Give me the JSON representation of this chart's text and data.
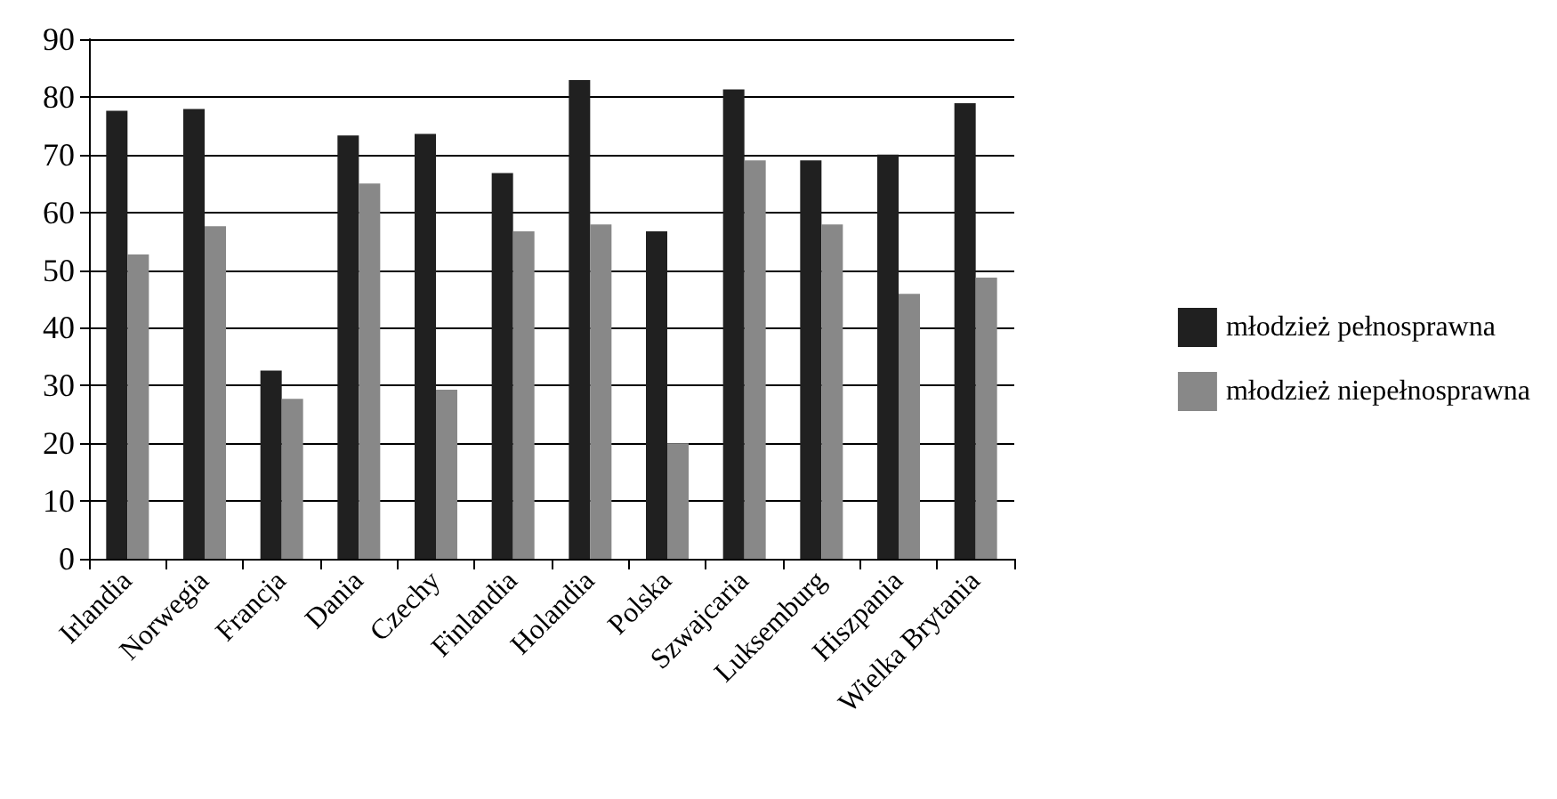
{
  "chart_data": {
    "type": "bar",
    "categories": [
      "Irlandia",
      "Norwegia",
      "Francja",
      "Dania",
      "Czechy",
      "Finlandia",
      "Holandia",
      "Polska",
      "Szwajcaria",
      "Luksemburg",
      "Hiszpania",
      "Wielka Brytania"
    ],
    "series": [
      {
        "name": "młodzież pełnosprawna",
        "color": "#202020",
        "values": [
          77.6,
          77.9,
          32.6,
          73.3,
          73.6,
          66.8,
          82.9,
          56.7,
          81.3,
          69.0,
          70.0,
          78.9
        ]
      },
      {
        "name": "młodzież niepełnosprawna",
        "color": "#888888",
        "values": [
          52.7,
          57.6,
          27.7,
          65.0,
          29.3,
          56.7,
          57.9,
          20.0,
          69.0,
          57.9,
          45.9,
          48.7
        ]
      }
    ],
    "ylim": [
      0,
      90
    ],
    "yticks": [
      0,
      10,
      20,
      30,
      40,
      50,
      60,
      70,
      80,
      90
    ],
    "grid": "y",
    "legend": "right"
  }
}
